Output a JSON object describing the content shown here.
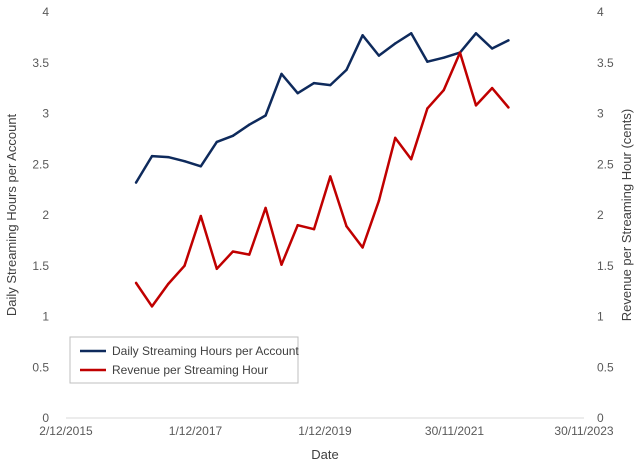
{
  "chart_data": {
    "type": "line",
    "xlabel": "Date",
    "ylabel_left": "Daily Streaming Hours per Account",
    "ylabel_right": "Revenue per Streaming Hour (cents)",
    "x_ticks": [
      "2015-12-02",
      "2017-12-01",
      "2019-12-01",
      "2021-11-30",
      "2023-11-30"
    ],
    "x_tick_labels": [
      "2/12/2015",
      "1/12/2017",
      "1/12/2019",
      "30/11/2021",
      "30/11/2023"
    ],
    "xlim": [
      "2015-12-02",
      "2023-11-30"
    ],
    "ylim_left": [
      0,
      4
    ],
    "ylim_right": [
      0,
      4
    ],
    "y_ticks": [
      0,
      0.5,
      1,
      1.5,
      2,
      2.5,
      3,
      3.5,
      4
    ],
    "y_tick_labels": [
      "0",
      "0.5",
      "1",
      "1.5",
      "2",
      "2.5",
      "3",
      "3.5",
      "4"
    ],
    "grid": false,
    "legend_position": "bottom-left",
    "x": [
      "2016-12-31",
      "2017-03-31",
      "2017-06-30",
      "2017-09-30",
      "2017-12-31",
      "2018-03-31",
      "2018-06-30",
      "2018-09-30",
      "2018-12-31",
      "2019-03-31",
      "2019-06-30",
      "2019-09-30",
      "2019-12-31",
      "2020-03-31",
      "2020-06-30",
      "2020-09-30",
      "2020-12-31",
      "2021-03-31",
      "2021-06-30",
      "2021-09-30",
      "2021-12-31",
      "2022-03-31",
      "2022-06-30",
      "2022-09-30"
    ],
    "series": [
      {
        "name": "Daily Streaming Hours per Account",
        "axis": "left",
        "color": "#0e2a5c",
        "values": [
          2.32,
          2.58,
          2.57,
          2.53,
          2.48,
          2.72,
          2.78,
          2.89,
          2.98,
          3.39,
          3.2,
          3.3,
          3.28,
          3.43,
          3.77,
          3.57,
          3.69,
          3.79,
          3.51,
          3.55,
          3.6,
          3.79,
          3.64,
          3.72
        ]
      },
      {
        "name": "Revenue per Streaming Hour",
        "axis": "right",
        "color": "#c00000",
        "values": [
          1.33,
          1.1,
          1.32,
          1.5,
          1.99,
          1.47,
          1.64,
          1.61,
          2.07,
          1.51,
          1.9,
          1.86,
          2.38,
          1.89,
          1.68,
          2.14,
          2.76,
          2.55,
          3.05,
          3.23,
          3.6,
          3.08,
          3.25,
          3.06
        ]
      }
    ]
  }
}
